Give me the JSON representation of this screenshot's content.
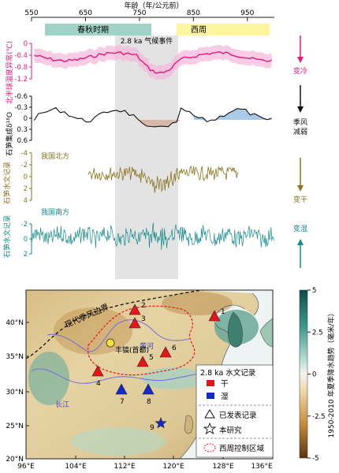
{
  "top_panel": {
    "x_axis_title": "年龄（年/公元前）",
    "x_ticks": [
      "550",
      "650",
      "750",
      "850",
      "950"
    ],
    "x_tick_values": [
      550,
      650,
      750,
      850,
      950
    ],
    "x_range": [
      550,
      1000
    ],
    "periods": [
      {
        "label": "春秋时期",
        "start": 550,
        "end": 770,
        "color": "#9fd3c8"
      },
      {
        "label": "西周",
        "start": 800,
        "end": 990,
        "color": "#fff5a0"
      }
    ],
    "event": {
      "label": "2.8 ka 气候事件",
      "start": 740,
      "end": 830
    },
    "rows": [
      {
        "key": "temperature",
        "label": "北半球温度异常(℃)",
        "ticks": [
          "0",
          "-0.4",
          "-0.8",
          "-1.2"
        ],
        "color": "#e8187c",
        "right_label": "变冷",
        "arrow": "down"
      },
      {
        "key": "monsoon",
        "label": "石笋集成δ¹⁸O",
        "ticks": [
          "-0.6",
          "-0.3",
          "0",
          "0.3",
          "0.6"
        ],
        "color": "#111111",
        "right_label": "季风\n减弱",
        "arrow": "down"
      },
      {
        "key": "north",
        "label": "石笋水文记录",
        "sublabel": "我国北方",
        "ticks": [
          "-4",
          "-2",
          "0",
          "2",
          "4"
        ],
        "color": "#8a7420",
        "right_label": "变干",
        "arrow": "down"
      },
      {
        "key": "south",
        "label": "石笋水文记录",
        "sublabel": "我国南方",
        "ticks": [
          "-2",
          "0",
          "2"
        ],
        "color": "#168a8a",
        "right_label": "变湿",
        "arrow": "up"
      }
    ]
  },
  "map": {
    "lat_ticks": [
      "40°N",
      "35°N",
      "30°N",
      "25°N",
      "20°N"
    ],
    "lon_ticks": [
      "96°E",
      "104°E",
      "112°E",
      "120°E",
      "128°E",
      "136°E"
    ],
    "boundary_label": "现代季风边界",
    "river_labels": {
      "yellow": "黄河",
      "yangtze": "长江"
    },
    "capital": {
      "label": "丰镐(首都)"
    },
    "sites": [
      {
        "id": "1",
        "type": "dry",
        "source": "published"
      },
      {
        "id": "2",
        "type": "dry",
        "source": "published"
      },
      {
        "id": "3",
        "type": "dry",
        "source": "published"
      },
      {
        "id": "4",
        "type": "dry",
        "source": "published"
      },
      {
        "id": "5",
        "type": "dry",
        "source": "published"
      },
      {
        "id": "6",
        "type": "dry",
        "source": "published"
      },
      {
        "id": "7",
        "type": "wet",
        "source": "published"
      },
      {
        "id": "8",
        "type": "wet",
        "source": "published"
      },
      {
        "id": "9",
        "type": "wet",
        "source": "this-study"
      }
    ],
    "legend": {
      "title": "2.8 ka 水文记录",
      "dry": "干",
      "wet": "湿",
      "published": "已发表记录",
      "this_study": "本研究",
      "zhou": "西周控制区域",
      "colors": {
        "dry": "#e8141c",
        "wet": "#1428d0",
        "zhou": "#e8141c"
      }
    },
    "colorbar": {
      "title": "1950-2010 年夏季降水趋势（毫米/年）",
      "ticks": [
        "5",
        "2.5",
        "0",
        "-2.5",
        "-5"
      ]
    }
  }
}
